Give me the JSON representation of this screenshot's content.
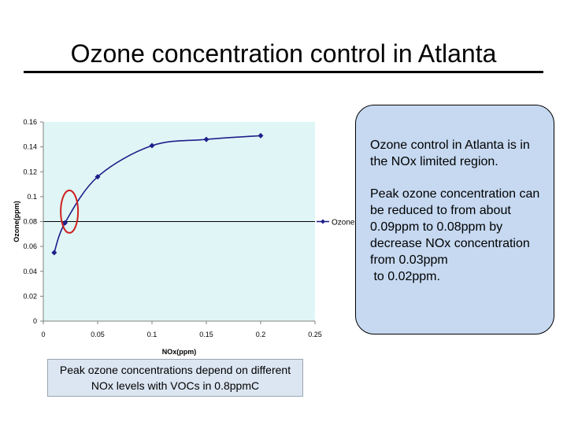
{
  "title": "Ozone concentration control in Atlanta",
  "callout": {
    "paragraph1": "Ozone control in Atlanta is in the NOx limited region.",
    "paragraph2": "Peak ozone concentration can be reduced to from about 0.09ppm to 0.08ppm by decrease NOx concentration from 0.03ppm\n to 0.02ppm."
  },
  "caption": "Peak ozone concentrations depend on different NOx levels with VOCs in 0.8ppmC",
  "colors": {
    "plot_background": "#e0f6f6",
    "series_line": "#1f1f8a",
    "highlight_ellipse": "#d02020",
    "callout_fill": "#c6d9f1",
    "caption_fill": "#dce6f2"
  },
  "chart_data": {
    "type": "line",
    "xlabel": "NOx(ppm)",
    "ylabel": "Ozone(ppm)",
    "xlim": [
      0,
      0.25
    ],
    "ylim": [
      0,
      0.16
    ],
    "x_ticks": [
      "0",
      "0.05",
      "0.1",
      "0.15",
      "0.2",
      "0.25"
    ],
    "y_ticks": [
      "0",
      "0.02",
      "0.04",
      "0.06",
      "0.08",
      "0.1",
      "0.12",
      "0.14",
      "0.16"
    ],
    "grid": "horizontal line at 0.08 only",
    "legend": "right",
    "series": [
      {
        "name": "Ozone",
        "x": [
          0.01,
          0.02,
          0.05,
          0.1,
          0.15,
          0.2
        ],
        "y": [
          0.055,
          0.079,
          0.116,
          0.141,
          0.146,
          0.149
        ]
      }
    ],
    "annotations": [
      {
        "type": "ellipse",
        "x": 0.024,
        "y": 0.088
      }
    ]
  }
}
